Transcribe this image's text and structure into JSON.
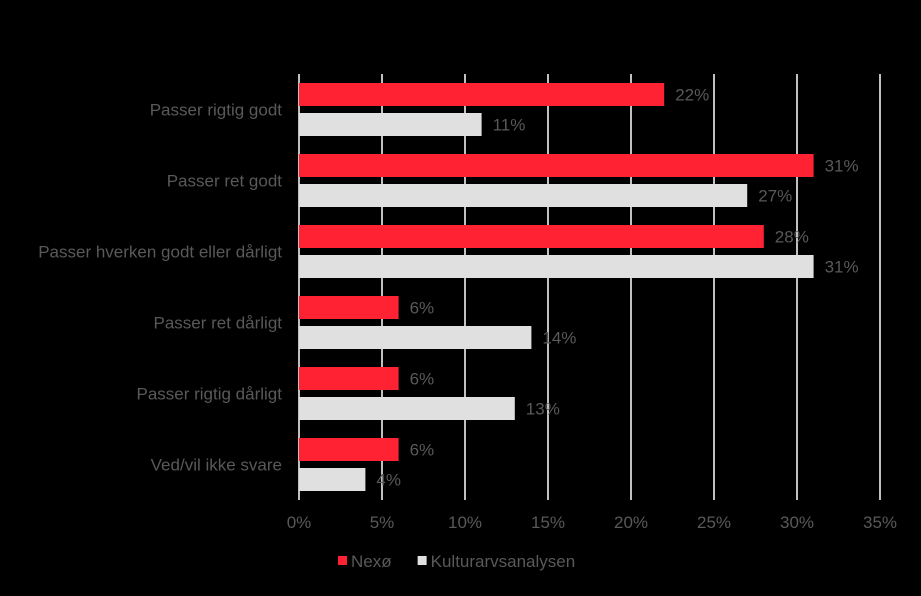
{
  "chart_data": {
    "type": "bar",
    "orientation": "horizontal",
    "categories": [
      "Passer rigtig godt",
      "Passer ret godt",
      "Passer hverken godt eller dårligt",
      "Passer ret dårligt",
      "Passer rigtig dårligt",
      "Ved/vil ikke svare"
    ],
    "series": [
      {
        "name": "Nexø",
        "color": "#ff2233",
        "values": [
          22,
          31,
          28,
          6,
          6,
          6
        ],
        "labels": [
          "22%",
          "31%",
          "28%",
          "6%",
          "6%",
          "6%"
        ]
      },
      {
        "name": "Kulturarvsanalysen",
        "color": "#e0e0e0",
        "values": [
          11,
          27,
          31,
          14,
          13,
          4
        ],
        "labels": [
          "11%",
          "27%",
          "31%",
          "14%",
          "13%",
          "4%"
        ]
      }
    ],
    "xlim": [
      0,
      35
    ],
    "xticks": [
      0,
      5,
      10,
      15,
      20,
      25,
      30,
      35
    ],
    "xtick_labels": [
      "0%",
      "5%",
      "10%",
      "15%",
      "20%",
      "25%",
      "30%",
      "35%"
    ],
    "grid": true,
    "legend_position": "bottom"
  }
}
